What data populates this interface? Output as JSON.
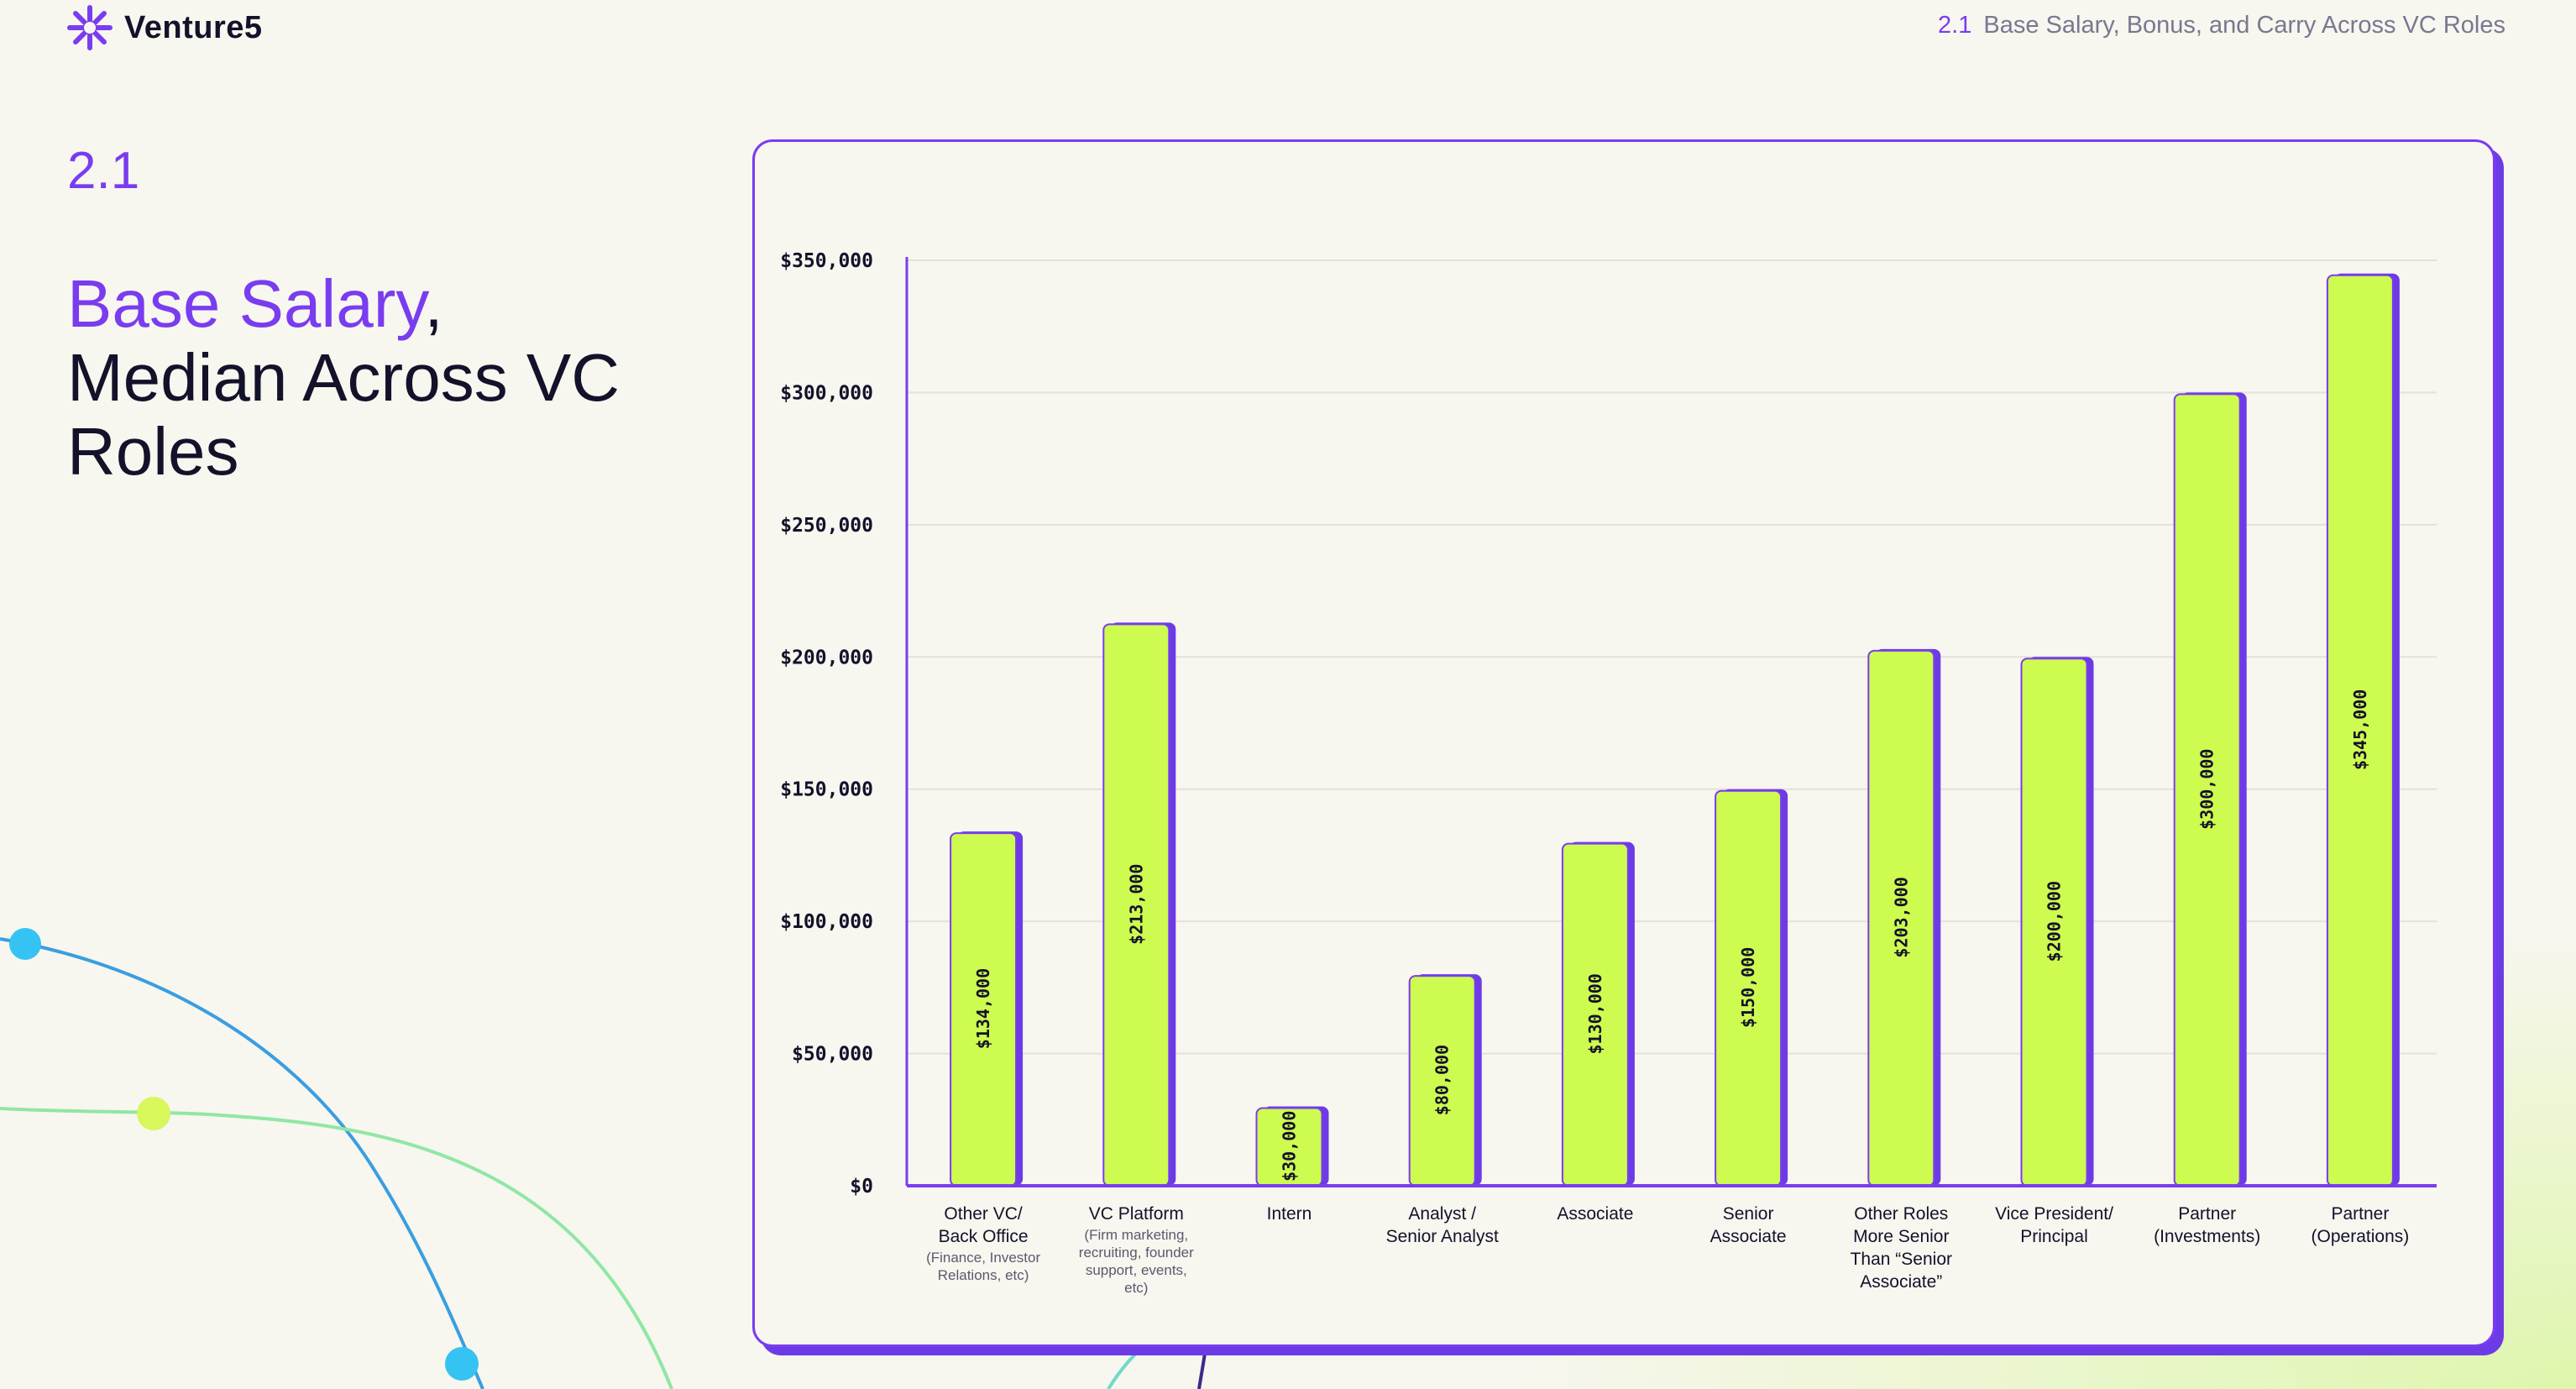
{
  "brand": {
    "name": "Venture5",
    "logo_icon": "asterisk-logo-icon"
  },
  "header": {
    "section_number": "2.1",
    "section_title": "Base Salary, Bonus, and Carry Across VC Roles"
  },
  "page": {
    "section_number": "2.1",
    "title_accent": "Base Salary",
    "title_comma": ",",
    "title_rest": "Median Across VC Roles"
  },
  "colors": {
    "accent": "#7a3cef",
    "bar_fill": "#cdfb4f",
    "bar_shadow": "#6d3be6",
    "text": "#14112a"
  },
  "chart_data": {
    "type": "bar",
    "title": "Base Salary, Median Across VC Roles",
    "ylabel": "",
    "xlabel": "",
    "ylim": [
      0,
      350000
    ],
    "yticks": [
      0,
      50000,
      100000,
      150000,
      200000,
      250000,
      300000,
      350000
    ],
    "ytick_labels": [
      "$0",
      "$50,000",
      "$100,000",
      "$150,000",
      "$200,000",
      "$250,000",
      "$300,000",
      "$350,000"
    ],
    "grid": true,
    "categories": [
      {
        "label": [
          "Other VC/",
          "Back Office"
        ],
        "sublabel": [
          "(Finance, Investor",
          "Relations, etc)"
        ]
      },
      {
        "label": [
          "VC Platform"
        ],
        "sublabel": [
          "(Firm marketing,",
          "recruiting, founder",
          "support, events,",
          "etc)"
        ]
      },
      {
        "label": [
          "Intern"
        ],
        "sublabel": []
      },
      {
        "label": [
          "Analyst /",
          "Senior Analyst"
        ],
        "sublabel": []
      },
      {
        "label": [
          "Associate"
        ],
        "sublabel": []
      },
      {
        "label": [
          "Senior",
          "Associate"
        ],
        "sublabel": []
      },
      {
        "label": [
          "Other Roles",
          "More Senior",
          "Than “Senior",
          "Associate”"
        ],
        "sublabel": []
      },
      {
        "label": [
          "Vice President/",
          "Principal"
        ],
        "sublabel": []
      },
      {
        "label": [
          "Partner",
          "(Investments)"
        ],
        "sublabel": []
      },
      {
        "label": [
          "Partner",
          "(Operations)"
        ],
        "sublabel": []
      }
    ],
    "values": [
      134000,
      213000,
      30000,
      80000,
      130000,
      150000,
      203000,
      200000,
      300000,
      345000
    ],
    "value_labels": [
      "$134,000",
      "$213,000",
      "$30,000",
      "$80,000",
      "$130,000",
      "$150,000",
      "$203,000",
      "$200,000",
      "$300,000",
      "$345,000"
    ]
  }
}
